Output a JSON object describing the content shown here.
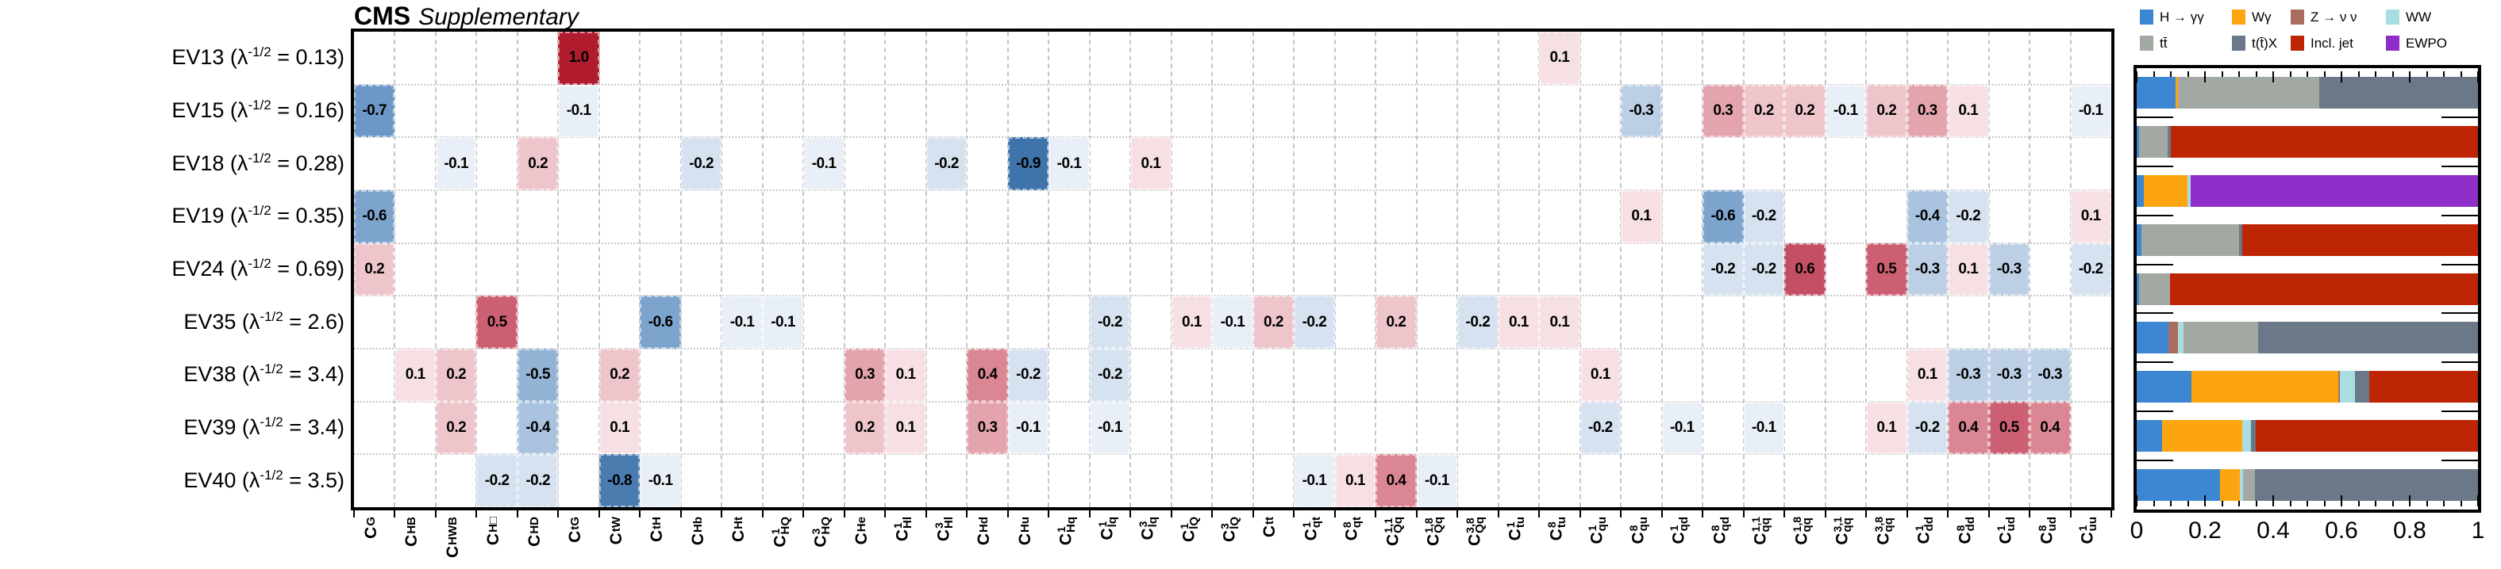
{
  "title": {
    "experiment": "CMS",
    "type": "Supplementary"
  },
  "colors": {
    "frame": "#000000",
    "grid": "#c6c6c6",
    "heat_positive_max": "#b01b2e",
    "heat_negative_max": "#3f74ab"
  },
  "chart_data": [
    {
      "type": "heatmap",
      "title": "CMS Supplementary",
      "value_range": [
        -1,
        1
      ],
      "grid": true,
      "columns": [
        {
          "sup": "",
          "sub": "G"
        },
        {
          "sup": "",
          "sub": "HB"
        },
        {
          "sup": "",
          "sub": "HWB"
        },
        {
          "sup": "",
          "sub": "H□"
        },
        {
          "sup": "",
          "sub": "HD"
        },
        {
          "sup": "",
          "sub": "tG"
        },
        {
          "sup": "",
          "sub": "tW"
        },
        {
          "sup": "",
          "sub": "tH"
        },
        {
          "sup": "",
          "sub": "Hb"
        },
        {
          "sup": "",
          "sub": "Ht"
        },
        {
          "sup": "1",
          "sub": "HQ"
        },
        {
          "sup": "3",
          "sub": "HQ"
        },
        {
          "sup": "",
          "sub": "He"
        },
        {
          "sup": "1",
          "sub": "Hl"
        },
        {
          "sup": "3",
          "sub": "Hl"
        },
        {
          "sup": "",
          "sub": "Hd"
        },
        {
          "sup": "",
          "sub": "Hu"
        },
        {
          "sup": "1",
          "sub": "Hq"
        },
        {
          "sup": "1",
          "sub": "lq"
        },
        {
          "sup": "3",
          "sub": "lq"
        },
        {
          "sup": "1",
          "sub": "lQ"
        },
        {
          "sup": "3",
          "sub": "lQ"
        },
        {
          "sup": "",
          "sub": "tt"
        },
        {
          "sup": "1",
          "sub": "qt"
        },
        {
          "sup": "8",
          "sub": "qt"
        },
        {
          "sup": "1,1",
          "sub": "Qq"
        },
        {
          "sup": "1,8",
          "sub": "Qq"
        },
        {
          "sup": "3,8",
          "sub": "Qq"
        },
        {
          "sup": "1",
          "sub": "tu"
        },
        {
          "sup": "8",
          "sub": "tu"
        },
        {
          "sup": "1",
          "sub": "qu"
        },
        {
          "sup": "8",
          "sub": "qu"
        },
        {
          "sup": "1",
          "sub": "qd"
        },
        {
          "sup": "8",
          "sub": "qd"
        },
        {
          "sup": "1,1",
          "sub": "qq"
        },
        {
          "sup": "1,8",
          "sub": "qq"
        },
        {
          "sup": "3,1",
          "sub": "qq"
        },
        {
          "sup": "3,8",
          "sub": "qq"
        },
        {
          "sup": "1",
          "sub": "dd"
        },
        {
          "sup": "8",
          "sub": "dd"
        },
        {
          "sup": "1",
          "sub": "ud"
        },
        {
          "sup": "8",
          "sub": "ud"
        },
        {
          "sup": "1",
          "sub": "uu"
        }
      ],
      "rows": [
        {
          "name": "EV13",
          "lambda": "0.13",
          "cells": [
            [
              6,
              1.0
            ],
            [
              30,
              0.1
            ]
          ]
        },
        {
          "name": "EV15",
          "lambda": "0.16",
          "cells": [
            [
              1,
              -0.7
            ],
            [
              6,
              -0.1
            ],
            [
              32,
              -0.3
            ],
            [
              34,
              0.3
            ],
            [
              35,
              0.2
            ],
            [
              36,
              0.2
            ],
            [
              37,
              -0.1
            ],
            [
              38,
              0.2
            ],
            [
              39,
              0.3
            ],
            [
              40,
              0.1
            ],
            [
              43,
              -0.1
            ]
          ]
        },
        {
          "name": "EV18",
          "lambda": "0.28",
          "cells": [
            [
              3,
              -0.1
            ],
            [
              5,
              0.2
            ],
            [
              9,
              -0.2
            ],
            [
              12,
              -0.1
            ],
            [
              15,
              -0.2
            ],
            [
              17,
              -0.9
            ],
            [
              18,
              -0.1
            ],
            [
              20,
              0.1
            ]
          ]
        },
        {
          "name": "EV19",
          "lambda": "0.35",
          "cells": [
            [
              1,
              -0.6
            ],
            [
              32,
              0.1
            ],
            [
              34,
              -0.6
            ],
            [
              35,
              -0.2
            ],
            [
              39,
              -0.4
            ],
            [
              40,
              -0.2
            ],
            [
              43,
              0.1
            ]
          ]
        },
        {
          "name": "EV24",
          "lambda": "0.69",
          "cells": [
            [
              1,
              0.2
            ],
            [
              34,
              -0.2
            ],
            [
              35,
              -0.2
            ],
            [
              36,
              0.6
            ],
            [
              38,
              0.5
            ],
            [
              39,
              -0.3
            ],
            [
              40,
              0.1
            ],
            [
              41,
              -0.3
            ],
            [
              43,
              -0.2
            ]
          ]
        },
        {
          "name": "EV35",
          "lambda": "2.6",
          "cells": [
            [
              4,
              0.5
            ],
            [
              8,
              -0.6
            ],
            [
              10,
              -0.1
            ],
            [
              11,
              -0.1
            ],
            [
              19,
              -0.2
            ],
            [
              21,
              0.1
            ],
            [
              22,
              -0.1
            ],
            [
              23,
              0.2
            ],
            [
              24,
              -0.2
            ],
            [
              26,
              0.2
            ],
            [
              28,
              -0.2
            ],
            [
              29,
              0.1
            ],
            [
              30,
              0.1
            ]
          ]
        },
        {
          "name": "EV38",
          "lambda": "3.4",
          "cells": [
            [
              2,
              0.1
            ],
            [
              3,
              0.2
            ],
            [
              5,
              -0.5
            ],
            [
              7,
              0.2
            ],
            [
              13,
              0.3
            ],
            [
              14,
              0.1
            ],
            [
              16,
              0.4
            ],
            [
              17,
              -0.2
            ],
            [
              19,
              -0.2
            ],
            [
              31,
              0.1
            ],
            [
              39,
              0.1
            ],
            [
              40,
              -0.3
            ],
            [
              41,
              -0.3
            ],
            [
              42,
              -0.3
            ]
          ]
        },
        {
          "name": "EV39",
          "lambda": "3.4",
          "cells": [
            [
              3,
              0.2
            ],
            [
              5,
              -0.4
            ],
            [
              7,
              0.1
            ],
            [
              13,
              0.2
            ],
            [
              14,
              0.1
            ],
            [
              16,
              0.3
            ],
            [
              17,
              -0.1
            ],
            [
              19,
              -0.1
            ],
            [
              31,
              -0.2
            ],
            [
              33,
              -0.1
            ],
            [
              35,
              -0.1
            ],
            [
              38,
              0.1
            ],
            [
              39,
              -0.2
            ],
            [
              40,
              0.4
            ],
            [
              41,
              0.5
            ],
            [
              42,
              0.4
            ]
          ]
        },
        {
          "name": "EV40",
          "lambda": "3.5",
          "cells": [
            [
              4,
              -0.2
            ],
            [
              5,
              -0.2
            ],
            [
              7,
              -0.8
            ],
            [
              8,
              -0.1
            ],
            [
              24,
              -0.1
            ],
            [
              25,
              0.1
            ],
            [
              26,
              0.4
            ],
            [
              27,
              -0.1
            ]
          ]
        }
      ],
      "colormap": {
        "0.1": "#f6e0e3",
        "0.2": "#eec5ca",
        "0.3": "#e4a4ad",
        "0.4": "#da8793",
        "0.5": "#cc6072",
        "0.6": "#c24f63",
        "1": "#b01b2e",
        "-0.1": "#e9eff6",
        "-0.2": "#d6e2ef",
        "-0.3": "#bccfe5",
        "-0.4": "#a9c3de",
        "-0.5": "#93b4d5",
        "-0.6": "#7ca4cd",
        "-0.7": "#6b98c6",
        "-0.8": "#4a7cb0",
        "-0.9": "#3f74ab"
      }
    },
    {
      "type": "bar",
      "stacked": true,
      "orientation": "horizontal",
      "xlim": [
        0,
        1
      ],
      "xticks": [
        "0",
        "0.2",
        "0.4",
        "0.6",
        "0.8",
        "1"
      ],
      "legend_position": "top",
      "series": {
        "hgg": {
          "label": "H → γγ",
          "color": "#3d87d2"
        },
        "wg": {
          "label": "Wγ",
          "color": "#fca50f"
        },
        "znn": {
          "label": "Z → ν ν",
          "color": "#a96d60"
        },
        "ww": {
          "label": "WW",
          "color": "#a8dde2"
        },
        "tt": {
          "label": "tt̄",
          "color": "#a2a9a2"
        },
        "ttx": {
          "label": "t(t̄)X",
          "color": "#6a7888"
        },
        "jet": {
          "label": "Incl. jet",
          "color": "#bd2403"
        },
        "ewpo": {
          "label": "EWPO",
          "color": "#8e2dc8"
        }
      },
      "legend_rows": [
        [
          "hgg",
          "wg",
          "znn",
          "ww"
        ],
        [
          "tt",
          "ttx",
          "jet",
          "ewpo"
        ]
      ],
      "bars": [
        {
          "name": "EV13",
          "segments": [
            [
              "hgg",
              0.115
            ],
            [
              "wg",
              0.007
            ],
            [
              "tt",
              0.412
            ],
            [
              "ttx",
              0.466
            ]
          ]
        },
        {
          "name": "EV15",
          "segments": [
            [
              "hgg",
              0.006
            ],
            [
              "tt",
              0.085
            ],
            [
              "ttx",
              0.01
            ],
            [
              "jet",
              0.899
            ]
          ]
        },
        {
          "name": "EV18",
          "segments": [
            [
              "hgg",
              0.022
            ],
            [
              "wg",
              0.127
            ],
            [
              "ww",
              0.008
            ],
            [
              "ewpo",
              0.843
            ]
          ]
        },
        {
          "name": "EV19",
          "segments": [
            [
              "hgg",
              0.015
            ],
            [
              "tt",
              0.285
            ],
            [
              "ttx",
              0.01
            ],
            [
              "jet",
              0.69
            ]
          ]
        },
        {
          "name": "EV24",
          "segments": [
            [
              "hgg",
              0.006
            ],
            [
              "tt",
              0.092
            ],
            [
              "jet",
              0.902
            ]
          ]
        },
        {
          "name": "EV35",
          "segments": [
            [
              "hgg",
              0.093
            ],
            [
              "znn",
              0.028
            ],
            [
              "ww",
              0.017
            ],
            [
              "tt",
              0.218
            ],
            [
              "ttx",
              0.644
            ]
          ]
        },
        {
          "name": "EV38",
          "segments": [
            [
              "hgg",
              0.16
            ],
            [
              "wg",
              0.43
            ],
            [
              "znn",
              0.006
            ],
            [
              "ww",
              0.043
            ],
            [
              "ttx",
              0.043
            ],
            [
              "jet",
              0.318
            ]
          ]
        },
        {
          "name": "EV39",
          "segments": [
            [
              "hgg",
              0.075
            ],
            [
              "wg",
              0.235
            ],
            [
              "ww",
              0.024
            ],
            [
              "ttx",
              0.016
            ],
            [
              "jet",
              0.65
            ]
          ]
        },
        {
          "name": "EV40",
          "segments": [
            [
              "hgg",
              0.245
            ],
            [
              "wg",
              0.058
            ],
            [
              "ww",
              0.008
            ],
            [
              "tt",
              0.036
            ],
            [
              "ttx",
              0.653
            ]
          ]
        }
      ]
    }
  ]
}
